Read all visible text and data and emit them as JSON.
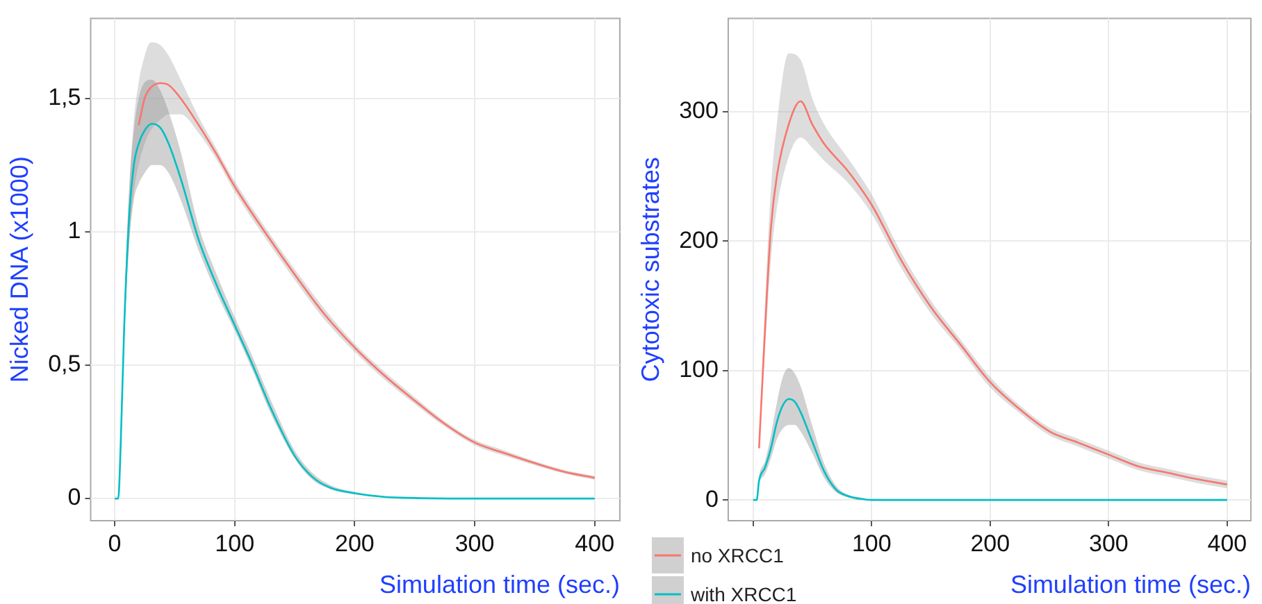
{
  "chart_data": [
    {
      "type": "line",
      "xlabel": "Simulation time (sec.)",
      "ylabel": "Nicked DNA (x1000)",
      "xlim": [
        -20,
        421
      ],
      "ylim": [
        -0.083,
        1.8
      ],
      "xticks": [
        0,
        100,
        200,
        300,
        400
      ],
      "yticks": [
        0,
        {
          "value": 0.5,
          "label": "0,5"
        },
        1,
        {
          "value": 1.5,
          "label": "1,5"
        }
      ],
      "grid": true,
      "legend": false,
      "series": [
        {
          "color": "#f8766d",
          "x": [
            0,
            3,
            5,
            8,
            12,
            16,
            20,
            25,
            30,
            38,
            45,
            55,
            70,
            85,
            100,
            125,
            150,
            175,
            200,
            225,
            250,
            275,
            300,
            325,
            350,
            375,
            400
          ],
          "values": [
            null,
            null,
            null,
            null,
            null,
            null,
            1.4,
            1.5,
            1.54,
            1.557,
            1.55,
            1.5,
            1.4,
            1.29,
            1.17,
            1.0,
            0.84,
            0.69,
            0.566,
            0.46,
            0.367,
            0.28,
            0.21,
            0.17,
            0.133,
            0.1,
            0.078
          ],
          "lower": [
            0,
            0,
            0.18,
            0.6,
            0.95,
            1.15,
            1.25,
            1.33,
            1.38,
            1.42,
            1.44,
            1.44,
            1.37,
            1.27,
            1.15,
            0.98,
            0.82,
            0.67,
            0.55,
            0.445,
            0.355,
            0.27,
            0.2,
            0.16,
            0.125,
            0.093,
            0.07
          ],
          "upper": [
            0,
            0,
            0.22,
            0.7,
            1.15,
            1.42,
            1.56,
            1.66,
            1.71,
            1.7,
            1.66,
            1.57,
            1.43,
            1.31,
            1.19,
            1.02,
            0.86,
            0.71,
            0.58,
            0.475,
            0.38,
            0.29,
            0.22,
            0.18,
            0.14,
            0.107,
            0.085
          ]
        },
        {
          "color": "#00bfc4",
          "x": [
            0,
            3,
            5,
            8,
            12,
            16,
            20,
            25,
            31,
            38,
            45,
            55,
            70,
            85,
            100,
            115,
            130,
            150,
            165,
            180,
            200,
            225,
            250,
            300,
            350,
            400
          ],
          "values": [
            0,
            0,
            0.2,
            0.65,
            1.05,
            1.25,
            1.33,
            1.38,
            1.405,
            1.39,
            1.33,
            1.2,
            0.97,
            0.8,
            0.65,
            0.5,
            0.34,
            0.16,
            0.08,
            0.04,
            0.02,
            0.006,
            0.002,
            0,
            0,
            0
          ],
          "lower": [
            0,
            0,
            0.18,
            0.6,
            0.95,
            1.12,
            1.18,
            1.22,
            1.25,
            1.25,
            1.22,
            1.12,
            0.93,
            0.77,
            0.63,
            0.48,
            0.32,
            0.15,
            0.07,
            0.035,
            0.016,
            0.004,
            0.001,
            0,
            0,
            0
          ],
          "upper": [
            0,
            0,
            0.22,
            0.7,
            1.15,
            1.38,
            1.5,
            1.56,
            1.57,
            1.53,
            1.45,
            1.3,
            1.02,
            0.84,
            0.68,
            0.53,
            0.37,
            0.18,
            0.095,
            0.05,
            0.025,
            0.008,
            0.003,
            0,
            0,
            0
          ]
        }
      ]
    },
    {
      "type": "line",
      "xlabel": "Simulation time (sec.)",
      "ylabel": "Cytotoxic substrates",
      "xlim": [
        -21,
        420
      ],
      "ylim": [
        -16,
        372
      ],
      "xticks": [
        {
          "value": 0,
          "label": null
        },
        100,
        200,
        300,
        400
      ],
      "yticks": [
        0,
        100,
        200,
        300
      ],
      "grid": true,
      "legend": "bottom left",
      "series": [
        {
          "name": "no XRCC1",
          "color": "#f8766d",
          "x": [
            5,
            10,
            15,
            20,
            30,
            40,
            50,
            60,
            80,
            100,
            125,
            150,
            175,
            200,
            225,
            250,
            275,
            300,
            325,
            350,
            375,
            400
          ],
          "values": [
            40,
            131,
            210,
            250,
            290,
            308,
            290,
            275,
            254,
            228,
            185,
            149,
            120,
            91,
            70,
            53,
            44,
            35,
            26,
            21,
            16,
            12
          ],
          "lower": [
            35,
            115,
            185,
            225,
            265,
            280,
            272,
            262,
            245,
            221,
            179,
            144,
            116,
            87,
            67,
            50,
            41,
            32,
            23,
            18,
            13,
            9
          ],
          "upper": [
            45,
            150,
            240,
            290,
            345,
            340,
            310,
            290,
            264,
            236,
            191,
            154,
            124,
            95,
            73,
            56,
            47,
            38,
            29,
            24,
            19,
            15
          ]
        },
        {
          "name": "with XRCC1",
          "color": "#00bfc4",
          "x": [
            0,
            3,
            5,
            10,
            15,
            20,
            25,
            30,
            35,
            40,
            50,
            60,
            70,
            80,
            90,
            100,
            200,
            300,
            400
          ],
          "values": [
            0,
            0,
            15,
            25,
            40,
            60,
            73,
            78,
            76,
            68,
            45,
            22,
            8,
            3,
            1,
            0,
            0,
            0,
            0
          ],
          "lower": [
            0,
            0,
            12,
            20,
            32,
            47,
            55,
            58,
            58,
            53,
            36,
            17,
            6,
            2,
            0,
            0,
            0,
            0,
            0
          ],
          "upper": [
            0,
            0,
            18,
            30,
            50,
            75,
            95,
            102,
            98,
            88,
            57,
            28,
            11,
            4,
            2,
            0,
            0,
            0,
            0
          ]
        }
      ]
    }
  ]
}
